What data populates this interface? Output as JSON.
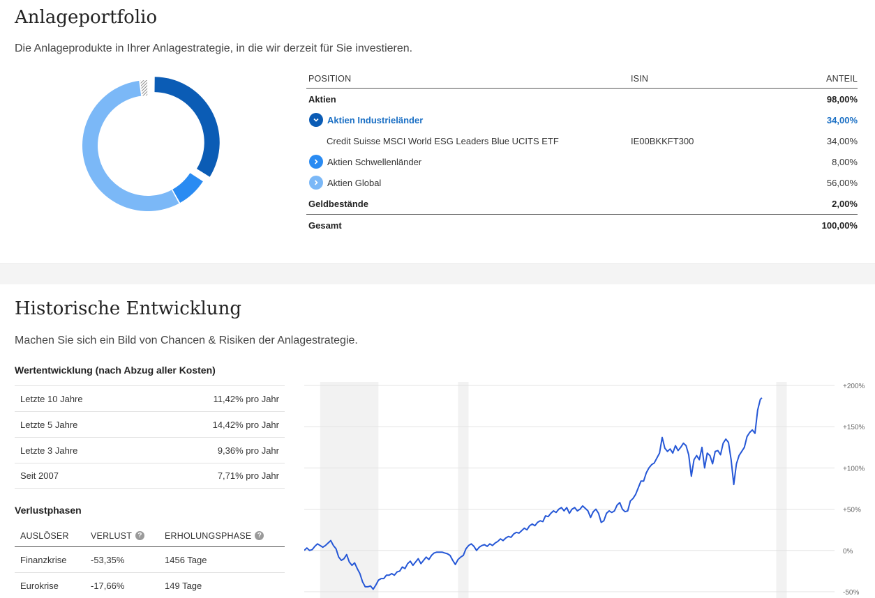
{
  "portfolio": {
    "title": "Anlageportfolio",
    "subtitle": "Die Anlageprodukte in Ihrer Anlagestrategie, in die wir derzeit für Sie investieren.",
    "table": {
      "headers": {
        "position": "POSITION",
        "isin": "ISIN",
        "share": "ANTEIL"
      },
      "rows": [
        {
          "label": "Aktien",
          "isin": "",
          "share": "98,00%",
          "style": "bold"
        },
        {
          "label": "Aktien Industrieländer",
          "isin": "",
          "share": "34,00%",
          "style": "expanded",
          "color": "#0b5cb5"
        },
        {
          "label": "Credit Suisse MSCI World ESG Leaders Blue UCITS ETF",
          "isin": "IE00BKKFT300",
          "share": "34,00%",
          "style": "child"
        },
        {
          "label": "Aktien Schwellenländer",
          "isin": "",
          "share": "8,00%",
          "style": "collapsed",
          "color": "#2a8bf2"
        },
        {
          "label": "Aktien Global",
          "isin": "",
          "share": "56,00%",
          "style": "collapsed",
          "color": "#7bb8f7"
        },
        {
          "label": "Geldbestände",
          "isin": "",
          "share": "2,00%",
          "style": "bold"
        }
      ],
      "total": {
        "label": "Gesamt",
        "share": "100,00%"
      }
    },
    "donut": [
      {
        "value": 34,
        "color": "#0b5cb5",
        "highlighted": true
      },
      {
        "value": 8,
        "color": "#2a8bf2"
      },
      {
        "value": 56,
        "color": "#7bb8f7"
      },
      {
        "value": 2,
        "color": "#9a9a9a",
        "hatched": true
      }
    ]
  },
  "history": {
    "title": "Historische Entwicklung",
    "subtitle": "Machen Sie sich ein Bild von Chancen & Risiken der Anlagestrategie.",
    "performance": {
      "heading": "Wertentwicklung (nach Abzug aller Kosten)",
      "rows": [
        {
          "period": "Letzte 10 Jahre",
          "value": "11,42% pro Jahr"
        },
        {
          "period": "Letzte 5 Jahre",
          "value": "14,42% pro Jahr"
        },
        {
          "period": "Letzte 3 Jahre",
          "value": "9,36% pro Jahr"
        },
        {
          "period": "Seit 2007",
          "value": "7,71% pro Jahr"
        }
      ]
    },
    "losses": {
      "heading": "Verlustphasen",
      "headers": {
        "trigger": "AUSLÖSER",
        "loss": "VERLUST",
        "recovery": "ERHOLUNGSPHASE"
      },
      "rows": [
        {
          "trigger": "Finanzkrise",
          "loss": "-53,35%",
          "recovery": "1456 Tage"
        },
        {
          "trigger": "Eurokrise",
          "loss": "-17,66%",
          "recovery": "149 Tage"
        }
      ]
    }
  },
  "chart_data": {
    "type": "line",
    "title": "",
    "xlabel": "",
    "ylabel": "",
    "ylim": [
      -50,
      200
    ],
    "yticks": [
      "+200%",
      "+150%",
      "+100%",
      "+50%",
      "0%",
      "-50%"
    ],
    "ytick_values": [
      200,
      150,
      100,
      50,
      0,
      -50
    ],
    "grid": true,
    "line_color": "#2557d6",
    "x_range": [
      0,
      100
    ],
    "shaded_periods": [
      [
        3,
        14
      ],
      [
        29,
        31
      ],
      [
        89,
        91
      ]
    ],
    "values": [
      [
        0,
        0
      ],
      [
        0.5,
        3
      ],
      [
        1,
        0
      ],
      [
        1.5,
        1
      ],
      [
        2,
        5
      ],
      [
        2.5,
        8
      ],
      [
        3,
        6
      ],
      [
        3.5,
        4
      ],
      [
        4,
        6
      ],
      [
        4.5,
        9
      ],
      [
        5,
        12
      ],
      [
        5.5,
        6
      ],
      [
        6,
        2
      ],
      [
        6.5,
        -8
      ],
      [
        7,
        -12
      ],
      [
        7.5,
        -10
      ],
      [
        8,
        -5
      ],
      [
        8.5,
        -14
      ],
      [
        9,
        -18
      ],
      [
        9.5,
        -15
      ],
      [
        10,
        -22
      ],
      [
        10.5,
        -28
      ],
      [
        11,
        -38
      ],
      [
        11.5,
        -44
      ],
      [
        12,
        -44
      ],
      [
        12.5,
        -43
      ],
      [
        13,
        -47
      ],
      [
        13.5,
        -42
      ],
      [
        14,
        -36
      ],
      [
        14.5,
        -34
      ],
      [
        15,
        -34
      ],
      [
        15.5,
        -30
      ],
      [
        16,
        -30
      ],
      [
        16.5,
        -28
      ],
      [
        17,
        -30
      ],
      [
        17.5,
        -26
      ],
      [
        18,
        -25
      ],
      [
        18.5,
        -20
      ],
      [
        19,
        -22
      ],
      [
        19.5,
        -16
      ],
      [
        20,
        -13
      ],
      [
        20.5,
        -18
      ],
      [
        21,
        -14
      ],
      [
        21.5,
        -10
      ],
      [
        22,
        -16
      ],
      [
        22.5,
        -12
      ],
      [
        23,
        -8
      ],
      [
        23.5,
        -11
      ],
      [
        24,
        -6
      ],
      [
        24.5,
        -3
      ],
      [
        25,
        -2
      ],
      [
        25.5,
        -2
      ],
      [
        26,
        -2
      ],
      [
        26.5,
        -3
      ],
      [
        27,
        -4
      ],
      [
        27.5,
        -6
      ],
      [
        28,
        -12
      ],
      [
        28.5,
        -17
      ],
      [
        29,
        -11
      ],
      [
        29.5,
        -8
      ],
      [
        30,
        -6
      ],
      [
        30.5,
        2
      ],
      [
        31,
        6
      ],
      [
        31.5,
        8
      ],
      [
        32,
        5
      ],
      [
        32.5,
        0
      ],
      [
        33,
        4
      ],
      [
        33.5,
        6
      ],
      [
        34,
        7
      ],
      [
        34.5,
        5
      ],
      [
        35,
        8
      ],
      [
        35.5,
        6
      ],
      [
        36,
        9
      ],
      [
        36.5,
        11
      ],
      [
        37,
        14
      ],
      [
        37.5,
        12
      ],
      [
        38,
        15
      ],
      [
        38.5,
        17
      ],
      [
        39,
        16
      ],
      [
        39.5,
        20
      ],
      [
        40,
        22
      ],
      [
        40.5,
        21
      ],
      [
        41,
        24
      ],
      [
        41.5,
        27
      ],
      [
        42,
        25
      ],
      [
        42.5,
        30
      ],
      [
        43,
        32
      ],
      [
        43.5,
        30
      ],
      [
        44,
        34
      ],
      [
        44.5,
        36
      ],
      [
        45,
        35
      ],
      [
        45.5,
        42
      ],
      [
        46,
        41
      ],
      [
        46.5,
        45
      ],
      [
        47,
        48
      ],
      [
        47.5,
        46
      ],
      [
        48,
        50
      ],
      [
        48.5,
        52
      ],
      [
        49,
        48
      ],
      [
        49.5,
        52
      ],
      [
        50,
        45
      ],
      [
        50.5,
        50
      ],
      [
        51,
        52
      ],
      [
        51.5,
        48
      ],
      [
        52,
        50
      ],
      [
        52.5,
        54
      ],
      [
        53,
        51
      ],
      [
        53.5,
        48
      ],
      [
        54,
        40
      ],
      [
        54.5,
        47
      ],
      [
        55,
        50
      ],
      [
        55.5,
        45
      ],
      [
        56,
        34
      ],
      [
        56.5,
        36
      ],
      [
        57,
        45
      ],
      [
        57.5,
        48
      ],
      [
        58,
        46
      ],
      [
        58.5,
        48
      ],
      [
        59,
        55
      ],
      [
        59.5,
        58
      ],
      [
        60,
        50
      ],
      [
        60.5,
        47
      ],
      [
        61,
        48
      ],
      [
        61.5,
        60
      ],
      [
        62,
        63
      ],
      [
        62.5,
        68
      ],
      [
        63,
        76
      ],
      [
        63.5,
        84
      ],
      [
        64,
        84
      ],
      [
        64.5,
        94
      ],
      [
        65,
        100
      ],
      [
        65.5,
        104
      ],
      [
        66,
        106
      ],
      [
        66.5,
        112
      ],
      [
        67,
        118
      ],
      [
        67.5,
        137
      ],
      [
        68,
        124
      ],
      [
        68.5,
        120
      ],
      [
        69,
        123
      ],
      [
        69.5,
        118
      ],
      [
        70,
        127
      ],
      [
        70.5,
        121
      ],
      [
        71,
        125
      ],
      [
        71.5,
        130
      ],
      [
        72,
        127
      ],
      [
        72.5,
        116
      ],
      [
        73,
        90
      ],
      [
        73.5,
        110
      ],
      [
        74,
        115
      ],
      [
        74.5,
        110
      ],
      [
        75,
        125
      ],
      [
        75.5,
        100
      ],
      [
        76,
        118
      ],
      [
        76.5,
        115
      ],
      [
        77,
        105
      ],
      [
        77.5,
        120
      ],
      [
        78,
        121
      ],
      [
        78.5,
        116
      ],
      [
        79,
        130
      ],
      [
        79.5,
        135
      ],
      [
        80,
        131
      ],
      [
        80.5,
        110
      ],
      [
        81,
        80
      ],
      [
        81.5,
        105
      ],
      [
        82,
        115
      ],
      [
        82.5,
        120
      ],
      [
        83,
        125
      ],
      [
        83.5,
        138
      ],
      [
        84,
        143
      ],
      [
        84.5,
        146
      ],
      [
        85,
        142
      ],
      [
        85.5,
        170
      ],
      [
        86,
        183
      ],
      [
        86.3,
        185
      ]
    ]
  }
}
